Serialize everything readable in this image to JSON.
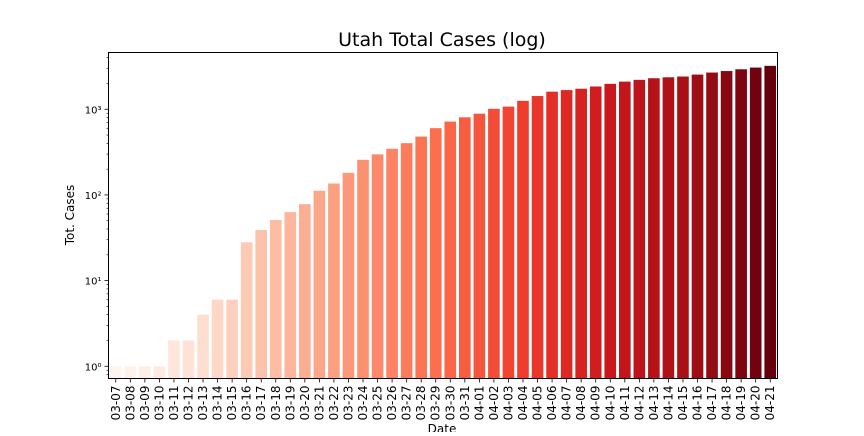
{
  "chart_data": {
    "type": "bar",
    "title": "Utah Total Cases (log)",
    "xlabel": "Date",
    "ylabel": "Tot. Cases",
    "yscale": "log",
    "ylim": [
      0.72,
      4600
    ],
    "yticks": [
      {
        "value": 1,
        "label": "10⁰"
      },
      {
        "value": 10,
        "label": "10¹"
      },
      {
        "value": 100,
        "label": "10²"
      },
      {
        "value": 1000,
        "label": "10³"
      }
    ],
    "color_scale": {
      "start": "#fff5f0",
      "end": "#67000d"
    },
    "grid": false,
    "legend": "none",
    "categories": [
      "03-07",
      "03-08",
      "03-09",
      "03-10",
      "03-11",
      "03-12",
      "03-13",
      "03-14",
      "03-15",
      "03-16",
      "03-17",
      "03-18",
      "03-19",
      "03-20",
      "03-21",
      "03-22",
      "03-23",
      "03-24",
      "03-25",
      "03-26",
      "03-27",
      "03-28",
      "03-29",
      "03-30",
      "03-31",
      "04-01",
      "04-02",
      "04-03",
      "04-04",
      "04-05",
      "04-06",
      "04-07",
      "04-08",
      "04-09",
      "04-10",
      "04-11",
      "04-12",
      "04-13",
      "04-14",
      "04-15",
      "04-16",
      "04-17",
      "04-18",
      "04-19",
      "04-20",
      "04-21"
    ],
    "values": [
      1,
      1,
      1,
      1,
      2,
      2,
      4,
      6,
      6,
      28,
      39,
      51,
      63,
      78,
      112,
      136,
      181,
      257,
      298,
      346,
      402,
      480,
      602,
      719,
      806,
      888,
      1012,
      1074,
      1255,
      1428,
      1605,
      1675,
      1738,
      1846,
      1980,
      2103,
      2206,
      2303,
      2363,
      2412,
      2542,
      2683,
      2793,
      2931,
      3069,
      3213
    ]
  }
}
